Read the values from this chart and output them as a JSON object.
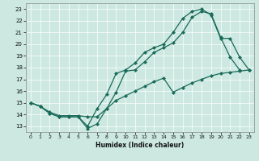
{
  "xlabel": "Humidex (Indice chaleur)",
  "bg_color": "#cce8e0",
  "line_color": "#1a6b5a",
  "xlim": [
    -0.5,
    23.5
  ],
  "ylim": [
    12.5,
    23.5
  ],
  "xticks": [
    0,
    1,
    2,
    3,
    4,
    5,
    6,
    7,
    8,
    9,
    10,
    11,
    12,
    13,
    14,
    15,
    16,
    17,
    18,
    19,
    20,
    21,
    22,
    23
  ],
  "yticks": [
    13,
    14,
    15,
    16,
    17,
    18,
    19,
    20,
    21,
    22,
    23
  ],
  "line1_x": [
    0,
    1,
    2,
    3,
    4,
    5,
    6,
    7,
    8,
    9,
    10,
    11,
    12,
    13,
    14,
    15,
    16,
    17,
    18,
    19,
    20,
    21,
    22
  ],
  "line1_y": [
    15.0,
    14.7,
    14.1,
    13.8,
    13.8,
    13.8,
    12.8,
    13.2,
    14.5,
    15.9,
    17.7,
    17.8,
    18.5,
    19.3,
    19.7,
    20.1,
    21.0,
    22.3,
    22.8,
    22.6,
    20.6,
    18.9,
    17.8
  ],
  "line2_x": [
    0,
    1,
    2,
    3,
    4,
    5,
    6,
    7,
    8,
    9,
    10,
    11,
    12,
    13,
    14,
    15,
    16,
    17,
    18,
    19,
    20,
    21,
    22,
    23
  ],
  "line2_y": [
    15.0,
    14.7,
    14.1,
    13.8,
    13.8,
    13.8,
    13.0,
    14.5,
    15.7,
    17.5,
    17.8,
    18.4,
    19.3,
    19.7,
    20.0,
    21.0,
    22.2,
    22.8,
    23.0,
    22.5,
    20.5,
    20.5,
    18.9,
    17.8
  ],
  "line3_x": [
    0,
    1,
    2,
    3,
    4,
    5,
    6,
    7,
    8,
    9,
    10,
    11,
    12,
    13,
    14,
    15,
    16,
    17,
    18,
    19,
    20,
    21,
    22,
    23
  ],
  "line3_y": [
    15.0,
    14.7,
    14.2,
    13.9,
    13.9,
    13.9,
    13.8,
    13.8,
    14.5,
    15.2,
    15.6,
    16.0,
    16.4,
    16.8,
    17.1,
    15.9,
    16.3,
    16.7,
    17.0,
    17.3,
    17.5,
    17.6,
    17.7,
    17.8
  ]
}
